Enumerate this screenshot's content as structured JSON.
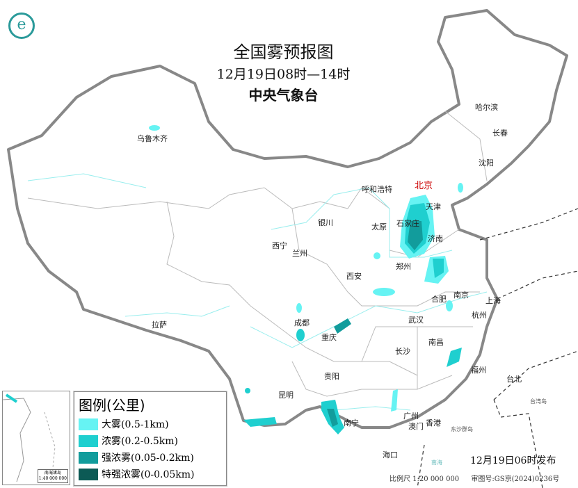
{
  "header": {
    "title": "全国雾预报图",
    "period": "12月19日08时—14时",
    "agency": "中央气象台"
  },
  "legend": {
    "title": "图例(公里)",
    "items": [
      {
        "label": "大雾(0.5-1km)",
        "color": "#66f3f3"
      },
      {
        "label": "浓雾(0.2-0.5km)",
        "color": "#1fcfcf"
      },
      {
        "label": "强浓雾(0.05-0.2km)",
        "color": "#129c9c"
      },
      {
        "label": "特强浓雾(0-0.05km)",
        "color": "#0c5a55"
      }
    ]
  },
  "cities": [
    "乌鲁木齐",
    "哈尔滨",
    "长春",
    "沈阳",
    "北京",
    "天津",
    "呼和浩特",
    "石家庄",
    "太原",
    "银川",
    "济南",
    "西宁",
    "兰州",
    "郑州",
    "西安",
    "南京",
    "合肥",
    "上海",
    "杭州",
    "武汉",
    "成都",
    "拉萨",
    "重庆",
    "长沙",
    "南昌",
    "福州",
    "台北",
    "贵阳",
    "昆明",
    "南宁",
    "广州",
    "澳门",
    "香港",
    "海口"
  ],
  "sea_labels": [
    "东沙群岛",
    "台湾岛",
    "南海"
  ],
  "inset": {
    "title": "南海诸岛",
    "scale": "1:40 000 000"
  },
  "release": "12月19日06时发布",
  "footer": {
    "scale": "比例尺 1:20 000 000",
    "approval": "审图号:GS京(2024)0236号"
  }
}
